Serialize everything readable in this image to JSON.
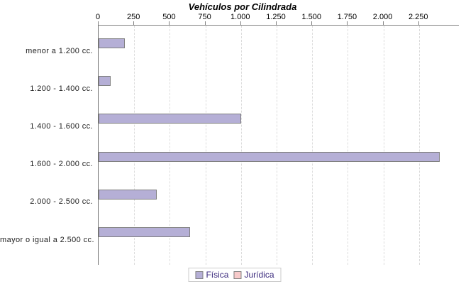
{
  "title": "Vehículos por Cilindrada",
  "chart_data": {
    "type": "bar",
    "orientation": "horizontal",
    "title": "Vehículos por Cilindrada",
    "categories": [
      "menor a 1.200 cc.",
      "1.200 - 1.400 cc.",
      "1.400 - 1.600 cc.",
      "1.600 - 2.000 cc.",
      "2.000 - 2.500 cc.",
      "mayor o igual a 2.500 cc."
    ],
    "series": [
      {
        "name": "Física",
        "color": "#b5afd6",
        "border_color": "#7f7f7f",
        "values": [
          185,
          85,
          1000,
          2395,
          410,
          640
        ]
      },
      {
        "name": "Jurídica",
        "color": "#f7caca",
        "border_color": "#7f7f7f",
        "values": [
          0,
          0,
          0,
          0,
          0,
          0
        ]
      }
    ],
    "x_ticks": [
      "0",
      "250",
      "500",
      "750",
      "1.000",
      "1.250",
      "1.500",
      "1.750",
      "2.000",
      "2.250"
    ],
    "x_tick_values": [
      0,
      250,
      500,
      750,
      1000,
      1250,
      1500,
      1750,
      2000,
      2250
    ],
    "xlim": [
      0,
      2535
    ],
    "xlabel": "",
    "ylabel": "",
    "grid": "dashed-vertical",
    "legend_position": "bottom",
    "legend_text_color": "#3b2a7d",
    "axis_color": "#808080",
    "gridline_color": "#dcdcdc"
  }
}
